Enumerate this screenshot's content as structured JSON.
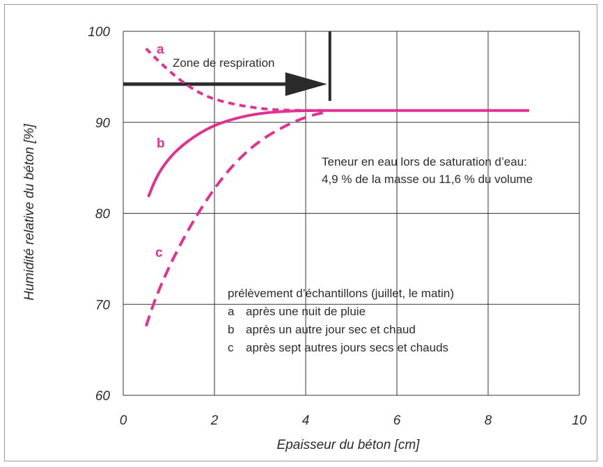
{
  "chart_data": {
    "type": "line",
    "xlabel": "Epaisseur du béton  [cm]",
    "ylabel": "Humidité relative du béton  [%]",
    "xlim": [
      0,
      10
    ],
    "ylim": [
      60,
      100
    ],
    "x_ticks": [
      "0",
      "2",
      "4",
      "6",
      "8",
      "10"
    ],
    "y_ticks": [
      "60",
      "70",
      "80",
      "90",
      "100"
    ],
    "grid": true,
    "series": [
      {
        "name": "a",
        "style": "dotted",
        "color": "#e0338f",
        "points": [
          [
            0.5,
            98.1
          ],
          [
            0.8,
            96.6
          ],
          [
            1.2,
            94.8
          ],
          [
            1.6,
            93.4
          ],
          [
            2.0,
            92.5
          ],
          [
            2.6,
            91.8
          ],
          [
            3.2,
            91.4
          ],
          [
            3.8,
            91.3
          ],
          [
            4.5,
            91.3
          ]
        ]
      },
      {
        "name": "b",
        "style": "solid",
        "color": "#e0338f",
        "points": [
          [
            0.55,
            81.8
          ],
          [
            0.7,
            83.7
          ],
          [
            0.9,
            85.4
          ],
          [
            1.2,
            87.1
          ],
          [
            1.6,
            88.6
          ],
          [
            2.0,
            89.7
          ],
          [
            2.5,
            90.5
          ],
          [
            3.0,
            91.0
          ],
          [
            3.5,
            91.2
          ],
          [
            4.0,
            91.3
          ],
          [
            5.0,
            91.3
          ],
          [
            6.0,
            91.3
          ],
          [
            7.0,
            91.3
          ],
          [
            8.0,
            91.3
          ],
          [
            8.9,
            91.3
          ]
        ]
      },
      {
        "name": "c",
        "style": "dashed",
        "color": "#e0338f",
        "points": [
          [
            0.5,
            67.6
          ],
          [
            0.7,
            70.6
          ],
          [
            1.0,
            74.1
          ],
          [
            1.4,
            78.0
          ],
          [
            1.8,
            81.3
          ],
          [
            2.2,
            84.1
          ],
          [
            2.6,
            86.3
          ],
          [
            3.0,
            88.0
          ],
          [
            3.5,
            89.5
          ],
          [
            4.0,
            90.6
          ],
          [
            4.5,
            91.2
          ]
        ]
      }
    ],
    "respiration_zone": {
      "label": "Zone de respiration",
      "arrow_y": 94.2,
      "x_start": 0,
      "x_end": 4.5
    },
    "annotation_saturation": [
      "Teneur en eau lors de saturation d’eau:",
      "4,9 % de la masse ou 11,6 % du volume"
    ],
    "legend_title": "prélèvement d’échantillons (juillet, le matin)",
    "legend_entries": [
      {
        "key": "a",
        "text": "après une nuit de pluie"
      },
      {
        "key": "b",
        "text": "après un autre jour sec et chaud"
      },
      {
        "key": "c",
        "text": "après sept autres jours secs et chauds"
      }
    ]
  }
}
